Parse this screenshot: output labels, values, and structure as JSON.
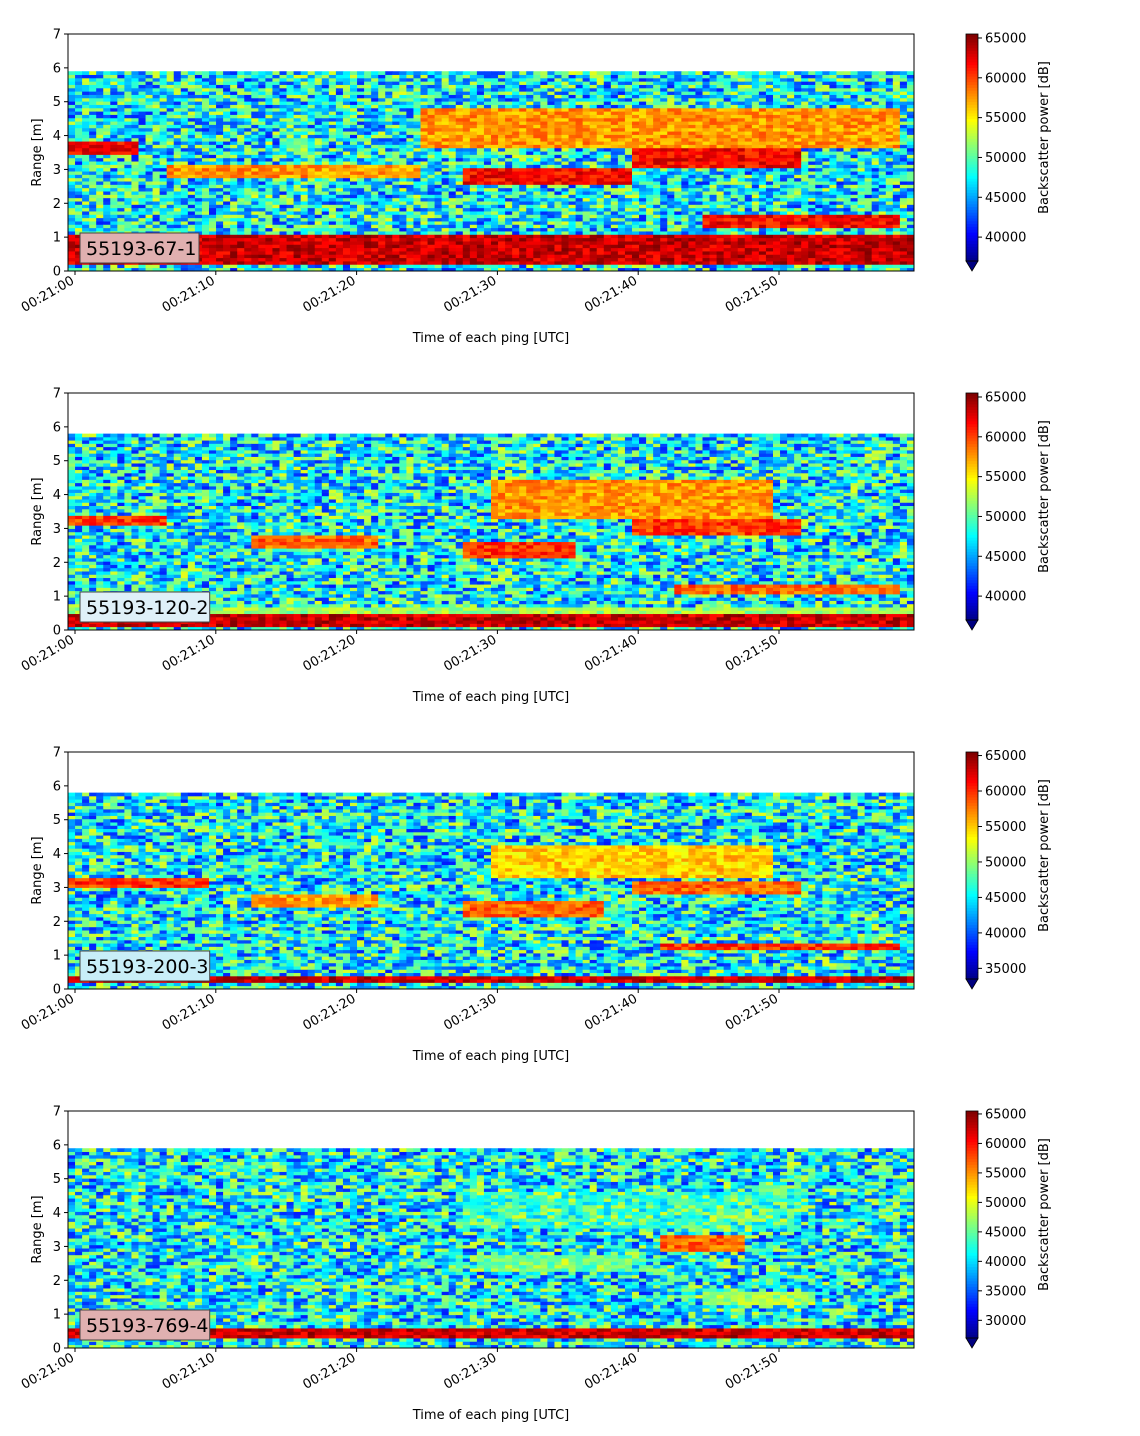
{
  "chart_data": [
    {
      "type": "heatmap",
      "label": "55193-67-1",
      "label_bg": "#e0b0b0",
      "xlabel": "Time of each ping [UTC]",
      "ylabel": "Range [m]",
      "x_ticks": [
        "00:21:00",
        "00:21:10",
        "00:21:20",
        "00:21:30",
        "00:21:40",
        "00:21:50"
      ],
      "x_range": [
        "00:21:00",
        "00:21:59"
      ],
      "ylim": [
        0,
        7
      ],
      "y_ticks": [
        "0",
        "1",
        "2",
        "3",
        "4",
        "5",
        "6",
        "7"
      ],
      "data_max_range": 5.9,
      "colorbar": {
        "label": "Backscatter power [dB]",
        "min": 37000,
        "max": 65500,
        "ticks": [
          "40000",
          "45000",
          "50000",
          "55000",
          "60000",
          "65000"
        ],
        "cmap": "jet"
      },
      "features": [
        {
          "kind": "band",
          "range_start": 0.2,
          "range_end": 1.1,
          "level": 1.0
        },
        {
          "kind": "band",
          "range_start": 3.4,
          "range_end": 3.8,
          "time_start": "00:21:00",
          "time_end": "00:21:05",
          "level": 0.95
        },
        {
          "kind": "band",
          "range_start": 2.8,
          "range_end": 3.1,
          "time_start": "00:21:07",
          "time_end": "00:21:25",
          "level": 0.8
        },
        {
          "kind": "band",
          "range_start": 2.6,
          "range_end": 3.0,
          "time_start": "00:21:28",
          "time_end": "00:21:40",
          "level": 0.95
        },
        {
          "kind": "band",
          "range_start": 3.0,
          "range_end": 3.6,
          "time_start": "00:21:40",
          "time_end": "00:21:52",
          "level": 0.95
        },
        {
          "kind": "band",
          "range_start": 3.6,
          "range_end": 4.8,
          "time_start": "00:21:25",
          "time_end": "00:21:59",
          "level": 0.8
        },
        {
          "kind": "band",
          "range_start": 1.3,
          "range_end": 1.7,
          "time_start": "00:21:45",
          "time_end": "00:21:59",
          "level": 0.95
        }
      ]
    },
    {
      "type": "heatmap",
      "label": "55193-120-2",
      "label_bg": "#dff0f8",
      "xlabel": "Time of each ping [UTC]",
      "ylabel": "Range [m]",
      "x_ticks": [
        "00:21:00",
        "00:21:10",
        "00:21:20",
        "00:21:30",
        "00:21:40",
        "00:21:50"
      ],
      "x_range": [
        "00:21:00",
        "00:21:59"
      ],
      "ylim": [
        0,
        7
      ],
      "y_ticks": [
        "0",
        "1",
        "2",
        "3",
        "4",
        "5",
        "6",
        "7"
      ],
      "data_max_range": 5.8,
      "colorbar": {
        "label": "Backscatter power [dB]",
        "min": 37000,
        "max": 65500,
        "ticks": [
          "40000",
          "45000",
          "50000",
          "55000",
          "60000",
          "65000"
        ],
        "cmap": "jet"
      },
      "features": [
        {
          "kind": "band",
          "range_start": 0.1,
          "range_end": 0.5,
          "level": 1.0
        },
        {
          "kind": "band",
          "range_start": 0.5,
          "range_end": 0.7,
          "level": 0.6
        },
        {
          "kind": "band",
          "range_start": 3.1,
          "range_end": 3.4,
          "time_start": "00:21:00",
          "time_end": "00:21:07",
          "level": 0.9
        },
        {
          "kind": "band",
          "range_start": 2.4,
          "range_end": 2.8,
          "time_start": "00:21:13",
          "time_end": "00:21:22",
          "level": 0.85
        },
        {
          "kind": "band",
          "range_start": 2.1,
          "range_end": 2.6,
          "time_start": "00:21:28",
          "time_end": "00:21:36",
          "level": 0.9
        },
        {
          "kind": "band",
          "range_start": 2.8,
          "range_end": 3.3,
          "time_start": "00:21:40",
          "time_end": "00:21:52",
          "level": 0.9
        },
        {
          "kind": "band",
          "range_start": 3.3,
          "range_end": 4.4,
          "time_start": "00:21:30",
          "time_end": "00:21:50",
          "level": 0.8
        },
        {
          "kind": "band",
          "range_start": 1.1,
          "range_end": 1.4,
          "time_start": "00:21:43",
          "time_end": "00:21:59",
          "level": 0.85
        }
      ]
    },
    {
      "type": "heatmap",
      "label": "55193-200-3",
      "label_bg": "#c8eef8",
      "xlabel": "Time of each ping [UTC]",
      "ylabel": "Range [m]",
      "x_ticks": [
        "00:21:00",
        "00:21:10",
        "00:21:20",
        "00:21:30",
        "00:21:40",
        "00:21:50"
      ],
      "x_range": [
        "00:21:00",
        "00:21:59"
      ],
      "ylim": [
        0,
        7
      ],
      "y_ticks": [
        "0",
        "1",
        "2",
        "3",
        "4",
        "5",
        "6",
        "7"
      ],
      "data_max_range": 5.8,
      "colorbar": {
        "label": "Backscatter power [dB]",
        "min": 33500,
        "max": 65500,
        "ticks": [
          "35000",
          "40000",
          "45000",
          "50000",
          "55000",
          "60000",
          "65000"
        ],
        "cmap": "jet"
      },
      "features": [
        {
          "kind": "band",
          "range_start": 0.15,
          "range_end": 0.4,
          "level": 1.0
        },
        {
          "kind": "band",
          "range_start": 3.0,
          "range_end": 3.3,
          "time_start": "00:21:00",
          "time_end": "00:21:10",
          "level": 0.9
        },
        {
          "kind": "band",
          "range_start": 2.4,
          "range_end": 2.8,
          "time_start": "00:21:13",
          "time_end": "00:21:22",
          "level": 0.8
        },
        {
          "kind": "band",
          "range_start": 2.1,
          "range_end": 2.6,
          "time_start": "00:21:28",
          "time_end": "00:21:38",
          "level": 0.85
        },
        {
          "kind": "band",
          "range_start": 2.8,
          "range_end": 3.2,
          "time_start": "00:21:40",
          "time_end": "00:21:52",
          "level": 0.85
        },
        {
          "kind": "band",
          "range_start": 3.3,
          "range_end": 4.3,
          "time_start": "00:21:30",
          "time_end": "00:21:50",
          "level": 0.75
        },
        {
          "kind": "band",
          "range_start": 1.2,
          "range_end": 1.4,
          "time_start": "00:21:42",
          "time_end": "00:21:59",
          "level": 0.9
        }
      ]
    },
    {
      "type": "heatmap",
      "label": "55193-769-4",
      "label_bg": "#e0b0b0",
      "xlabel": "Time of each ping [UTC]",
      "ylabel": "Range [m]",
      "x_ticks": [
        "00:21:00",
        "00:21:10",
        "00:21:20",
        "00:21:30",
        "00:21:40",
        "00:21:50"
      ],
      "x_range": [
        "00:21:00",
        "00:21:59"
      ],
      "ylim": [
        0,
        7
      ],
      "y_ticks": [
        "0",
        "1",
        "2",
        "3",
        "4",
        "5",
        "6",
        "7"
      ],
      "data_max_range": 5.9,
      "colorbar": {
        "label": "Backscatter power [dB]",
        "min": 27000,
        "max": 65500,
        "ticks": [
          "30000",
          "35000",
          "40000",
          "45000",
          "50000",
          "55000",
          "60000",
          "65000"
        ],
        "cmap": "jet"
      },
      "features": [
        {
          "kind": "band",
          "range_start": 0.25,
          "range_end": 0.6,
          "level": 1.0
        },
        {
          "kind": "band",
          "range_start": 2.9,
          "range_end": 3.3,
          "time_start": "00:21:42",
          "time_end": "00:21:48",
          "level": 0.85
        },
        {
          "kind": "band",
          "range_start": 2.3,
          "range_end": 2.8,
          "time_start": "00:21:29",
          "time_end": "00:21:40",
          "level": 0.55
        },
        {
          "kind": "band",
          "range_start": 3.5,
          "range_end": 4.6,
          "time_start": "00:21:28",
          "time_end": "00:21:52",
          "level": 0.45
        },
        {
          "kind": "band",
          "range_start": 1.3,
          "range_end": 1.7,
          "time_start": "00:21:45",
          "time_end": "00:21:53",
          "level": 0.6
        }
      ]
    }
  ]
}
